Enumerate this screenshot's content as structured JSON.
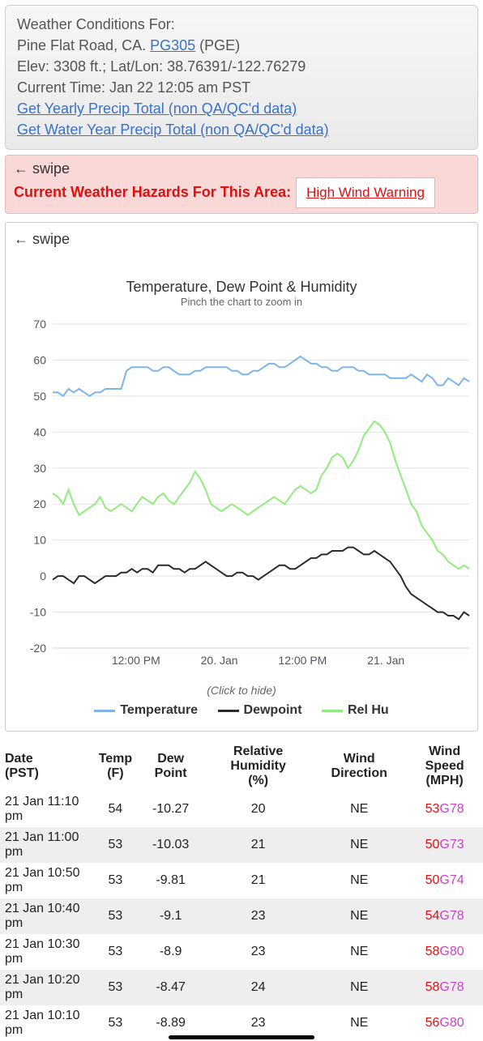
{
  "info": {
    "line1": "Weather Conditions For:",
    "line2_prefix": "Pine Flat Road, CA. ",
    "station_link": "PG305",
    "line2_suffix": " (PGE)",
    "line3": "Elev: 3308 ft.; Lat/Lon: 38.76391/-122.76279",
    "line4": "Current Time: Jan 22 12:05 am PST",
    "link_yearly": "Get Yearly Precip Total (non QA/QC'd data)",
    "link_wateryear": "Get Water Year Precip Total (non QA/QC'd data)"
  },
  "hazard": {
    "swipe": "🠔 swipe",
    "title": "Current Weather Hazards For This Area:",
    "warning": "High Wind Warning"
  },
  "chart": {
    "swipe": "🠔 swipe",
    "title": "Temperature, Dew Point & Humidity",
    "subtitle": "Pinch the chart to zoom in",
    "click_to_hide": "(Click to hide)",
    "legend": {
      "temp": "Temperature",
      "dew": "Dewpoint",
      "rh": "Rel Hu"
    },
    "colors": {
      "temp": "#7cb5ec",
      "dew": "#2b2b2b",
      "rh": "#90ed7d",
      "grid": "#e6e6e6",
      "axis_text": "#666666"
    },
    "ylim": [
      -20,
      70
    ],
    "ytick_step": 10,
    "yticks": [
      -20,
      -10,
      0,
      10,
      20,
      30,
      40,
      50,
      60,
      70
    ],
    "xticks": [
      "12:00 PM",
      "20. Jan",
      "12:00 PM",
      "21. Jan"
    ],
    "series": {
      "temp": [
        51,
        51,
        50,
        52,
        51,
        52,
        51,
        50,
        51,
        51,
        52,
        52,
        52,
        52,
        57,
        58,
        58,
        58,
        58,
        57,
        57,
        58,
        58,
        57,
        56,
        56,
        56,
        57,
        57,
        58,
        58,
        58,
        58,
        58,
        57,
        57,
        56,
        56,
        57,
        57,
        58,
        59,
        59,
        58,
        58,
        59,
        60,
        61,
        60,
        59,
        59,
        58,
        58,
        57,
        57,
        58,
        58,
        58,
        57,
        57,
        56,
        56,
        56,
        56,
        55,
        55,
        55,
        55,
        56,
        55,
        54,
        56,
        55,
        53,
        53,
        55,
        54,
        53,
        55,
        54
      ],
      "dew": [
        -1,
        0,
        0,
        -1,
        -2,
        0,
        0,
        -1,
        -2,
        -1,
        0,
        0,
        0,
        1,
        1,
        2,
        1,
        2,
        2,
        1,
        3,
        3,
        3,
        2,
        2,
        1,
        2,
        2,
        3,
        4,
        3,
        2,
        1,
        0,
        0,
        1,
        1,
        0,
        0,
        -1,
        0,
        1,
        2,
        3,
        3,
        2,
        2,
        3,
        4,
        5,
        5,
        6,
        6,
        7,
        7,
        7,
        8,
        8,
        7,
        6,
        6,
        7,
        6,
        5,
        4,
        2,
        0,
        -3,
        -5,
        -6,
        -7,
        -8,
        -9,
        -10,
        -10,
        -11,
        -11,
        -12,
        -10,
        -11
      ],
      "rh": [
        23,
        22,
        20,
        24,
        20,
        17,
        18,
        19,
        20,
        22,
        19,
        18,
        19,
        20,
        19,
        18,
        20,
        22,
        21,
        20,
        22,
        23,
        21,
        20,
        22,
        24,
        26,
        29,
        27,
        24,
        20,
        19,
        18,
        19,
        20,
        19,
        18,
        17,
        18,
        19,
        20,
        21,
        22,
        21,
        20,
        22,
        24,
        25,
        24,
        23,
        24,
        28,
        30,
        33,
        34,
        33,
        30,
        32,
        35,
        39,
        41,
        43,
        42,
        40,
        37,
        32,
        28,
        24,
        20,
        18,
        14,
        12,
        10,
        7,
        6,
        4,
        3,
        2,
        3,
        2
      ]
    }
  },
  "table": {
    "headers": {
      "date": "Date",
      "date2": "(PST)",
      "temp": "Temp",
      "temp2": "(F)",
      "dew": "Dew Point",
      "rh": "Relative Humidity",
      "rh2": "(%)",
      "wdir": "Wind Direction",
      "wspd": "Wind Speed",
      "wspd2": "(MPH)"
    },
    "rows": [
      {
        "date": "21 Jan 11:10 pm",
        "temp": "54",
        "dew": "-10.27",
        "rh": "20",
        "wdir": "NE",
        "ws": "53",
        "wg": "78"
      },
      {
        "date": "21 Jan 11:00 pm",
        "temp": "53",
        "dew": "-10.03",
        "rh": "21",
        "wdir": "NE",
        "ws": "50",
        "wg": "73"
      },
      {
        "date": "21 Jan 10:50 pm",
        "temp": "53",
        "dew": "-9.81",
        "rh": "21",
        "wdir": "NE",
        "ws": "50",
        "wg": "74"
      },
      {
        "date": "21 Jan 10:40 pm",
        "temp": "53",
        "dew": "-9.1",
        "rh": "23",
        "wdir": "NE",
        "ws": "54",
        "wg": "78"
      },
      {
        "date": "21 Jan 10:30 pm",
        "temp": "53",
        "dew": "-8.9",
        "rh": "23",
        "wdir": "NE",
        "ws": "58",
        "wg": "80"
      },
      {
        "date": "21 Jan 10:20 pm",
        "temp": "53",
        "dew": "-8.47",
        "rh": "24",
        "wdir": "NE",
        "ws": "58",
        "wg": "78"
      },
      {
        "date": "21 Jan 10:10 pm",
        "temp": "53",
        "dew": "-8.89",
        "rh": "23",
        "wdir": "NE",
        "ws": "56",
        "wg": "80"
      }
    ]
  }
}
